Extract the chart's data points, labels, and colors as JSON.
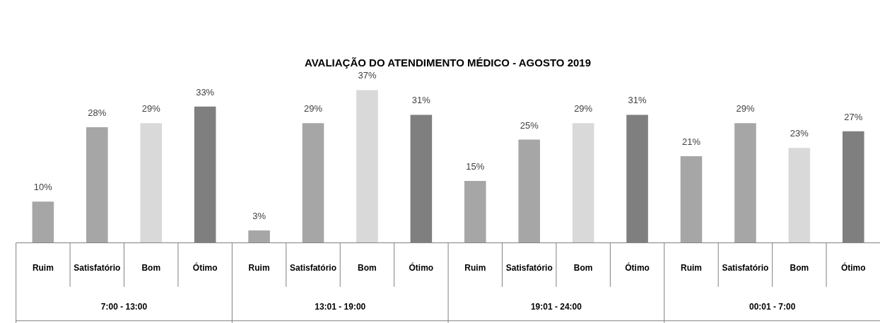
{
  "chart_data": {
    "type": "bar",
    "title": "AVALIAÇÃO DO ATENDIMENTO MÉDICO - AGOSTO 2019",
    "categories": [
      "Ruim",
      "Satisfatório",
      "Bom",
      "Ótimo",
      "Ruim",
      "Satisfatório",
      "Bom",
      "Ótimo",
      "Ruim",
      "Satisfatório",
      "Bom",
      "Ótimo",
      "Ruim",
      "Satisfatório",
      "Bom",
      "Ótimo"
    ],
    "values": [
      10,
      28,
      29,
      33,
      3,
      29,
      37,
      31,
      15,
      25,
      29,
      31,
      21,
      29,
      23,
      27
    ],
    "value_labels": [
      "10%",
      "28%",
      "29%",
      "33%",
      "3%",
      "29%",
      "37%",
      "31%",
      "15%",
      "25%",
      "29%",
      "31%",
      "21%",
      "29%",
      "23%",
      "27%"
    ],
    "colors": [
      "#a6a6a6",
      "#a6a6a6",
      "#d9d9d9",
      "#7f7f7f",
      "#a6a6a6",
      "#a6a6a6",
      "#d9d9d9",
      "#7f7f7f",
      "#a6a6a6",
      "#a6a6a6",
      "#d9d9d9",
      "#7f7f7f",
      "#a6a6a6",
      "#a6a6a6",
      "#d9d9d9",
      "#7f7f7f"
    ],
    "annotations": [
      "7:00 - 13:00",
      "13:01 - 19:00",
      "19:01 - 24:00",
      "00:01 - 7:00"
    ]
  }
}
